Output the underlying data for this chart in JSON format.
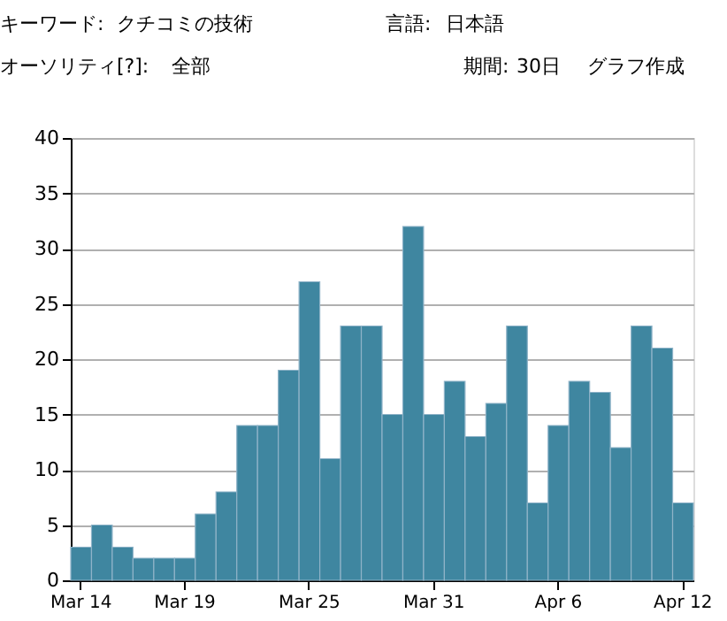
{
  "chart_data": {
    "type": "bar",
    "categories": [
      "Mar 14",
      null,
      null,
      null,
      null,
      "Mar 19",
      null,
      null,
      null,
      null,
      null,
      "Mar 25",
      null,
      null,
      null,
      null,
      null,
      "Mar 31",
      null,
      null,
      null,
      null,
      null,
      "Apr 6",
      null,
      null,
      null,
      null,
      null,
      "Apr 12"
    ],
    "values": [
      3,
      5,
      3,
      2,
      2,
      2,
      6,
      8,
      14,
      14,
      19,
      27,
      11,
      23,
      23,
      15,
      32,
      15,
      18,
      13,
      16,
      23,
      7,
      14,
      18,
      17,
      12,
      23,
      21,
      7
    ],
    "color": "#3f86a0",
    "ylim": [
      0,
      40
    ],
    "yticks": [
      0,
      5,
      10,
      15,
      20,
      25,
      30,
      35,
      40
    ],
    "grid": "y",
    "annotations": [
      "キーワード:",
      "クチコミの技術",
      "言語:",
      "日本語",
      "オーソリティ[?]:",
      "全部",
      "期間:",
      "30日",
      "グラフ作成"
    ]
  }
}
